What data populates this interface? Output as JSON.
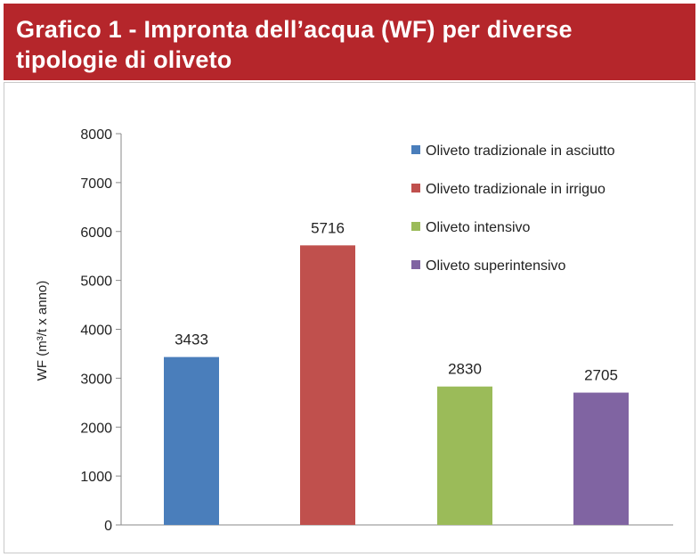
{
  "header": {
    "title_line1": "Grafico 1 - Impronta dell’acqua (WF) per diverse",
    "title_line2": "tipologie di oliveto"
  },
  "colors": {
    "header_bg": "#b5262b",
    "series": [
      "#4a7ebb",
      "#c0504d",
      "#9bbb59",
      "#8064a2"
    ]
  },
  "chart_data": {
    "type": "bar",
    "title": "Grafico 1 - Impronta dell’acqua (WF) per diverse tipologie di oliveto",
    "ylabel": "WF (m³/t x anno)",
    "xlabel": "",
    "ylim": [
      0,
      8000
    ],
    "yticks": [
      0,
      1000,
      2000,
      3000,
      4000,
      5000,
      6000,
      7000,
      8000
    ],
    "grid": false,
    "legend_position": "top-right",
    "categories": [
      "Oliveto tradizionale in asciutto",
      "Oliveto tradizionale in irriguo",
      "Oliveto intensivo",
      "Oliveto superintensivo"
    ],
    "values": [
      3433,
      5716,
      2830,
      2705
    ],
    "data_labels": [
      "3433",
      "5716",
      "2830",
      "2705"
    ]
  }
}
